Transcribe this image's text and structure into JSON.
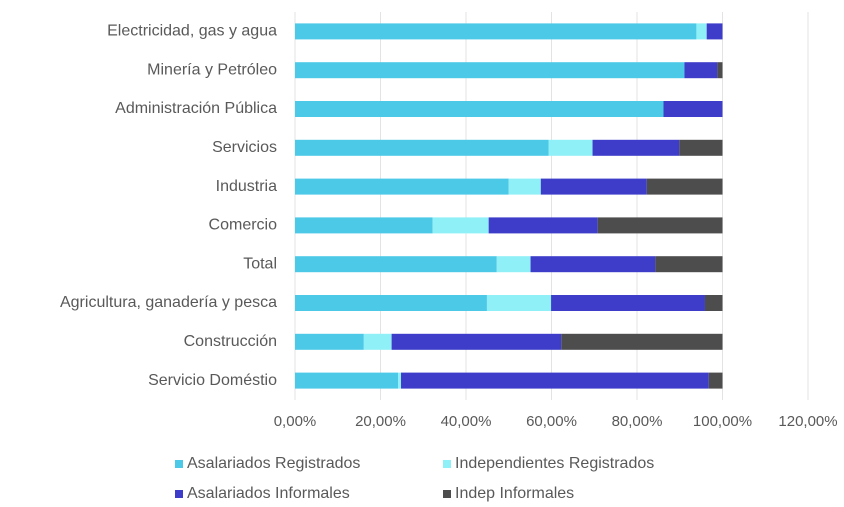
{
  "chart_data": {
    "type": "stacked_barh",
    "categories": [
      "Electricidad, gas y agua",
      "Minería y Petróleo",
      "Administración Pública",
      "Servicios",
      "Industria",
      "Comercio",
      "Total",
      "Agricultura, ganadería y pesca",
      "Construcción",
      "Servicio Doméstio"
    ],
    "series": [
      {
        "name": "Asalariados Registrados",
        "color": "#4dc9e8",
        "values": [
          93.9,
          91.1,
          86.2,
          59.3,
          50.0,
          32.2,
          47.2,
          44.9,
          16.1,
          24.1
        ]
      },
      {
        "name": "Independientes Registrados",
        "color": "#8ff0f7",
        "values": [
          2.4,
          0,
          0,
          10.3,
          7.5,
          13.1,
          7.9,
          15.0,
          6.5,
          0.7
        ]
      },
      {
        "name": "Asalariados Informales",
        "color": "#3d3dc9",
        "values": [
          3.7,
          7.7,
          13.8,
          20.3,
          24.8,
          25.5,
          29.2,
          36.0,
          39.7,
          72.0
        ]
      },
      {
        "name": "Indep Informales",
        "color": "#4d4d4d",
        "values": [
          0,
          1.2,
          0,
          10.1,
          17.7,
          29.2,
          15.7,
          4.1,
          37.7,
          3.2
        ]
      }
    ],
    "xlim": [
      0,
      120
    ],
    "xticks": [
      {
        "value": 0,
        "label": "0,00%"
      },
      {
        "value": 20,
        "label": "20,00%"
      },
      {
        "value": 40,
        "label": "40,00%"
      },
      {
        "value": 60,
        "label": "60,00%"
      },
      {
        "value": 80,
        "label": "80,00%"
      },
      {
        "value": 100,
        "label": "100,00%"
      },
      {
        "value": 120,
        "label": "120,00%"
      }
    ],
    "grid": true
  }
}
